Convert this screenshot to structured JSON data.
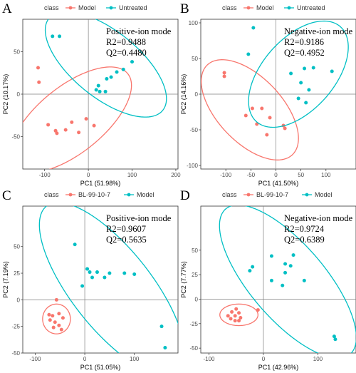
{
  "colors": {
    "model": "#F8766D",
    "untreated": "#00BFC4",
    "bl": "#F8766D"
  },
  "chart_data": [
    {
      "type": "scatter",
      "panel_letter": "A",
      "legend_title": "class",
      "xlabel": "PC1 (51.98%)",
      "ylabel": "PC2 (10.17%)",
      "xlim": [
        -150,
        205
      ],
      "ylim": [
        -88,
        88
      ],
      "xticks": [
        -100,
        0,
        100,
        200
      ],
      "yticks": [
        -50,
        0,
        50
      ],
      "annotations": [
        "Positive-ion mode",
        "R2=0.9488",
        "Q2=0.4480"
      ],
      "series": [
        {
          "name": "Model",
          "color": "#F8766D",
          "points": [
            [
              -115,
              31
            ],
            [
              -113,
              14
            ],
            [
              -92,
              -36
            ],
            [
              -75,
              -43
            ],
            [
              -72,
              -46
            ],
            [
              -52,
              -42
            ],
            [
              -38,
              -33
            ],
            [
              -22,
              -45
            ],
            [
              -5,
              -29
            ],
            [
              13,
              -37
            ]
          ],
          "ellipse": {
            "cx": -40,
            "cy": -30,
            "rx": 145,
            "ry": 45,
            "angle": 18
          }
        },
        {
          "name": "Untreated",
          "color": "#00BFC4",
          "points": [
            [
              -82,
              68
            ],
            [
              -66,
              68
            ],
            [
              18,
              5
            ],
            [
              23,
              10
            ],
            [
              26,
              3
            ],
            [
              39,
              3
            ],
            [
              42,
              18
            ],
            [
              52,
              20
            ],
            [
              65,
              26
            ],
            [
              80,
              29
            ],
            [
              100,
              38
            ]
          ],
          "ellipse": {
            "cx": 40,
            "cy": 35,
            "rx": 145,
            "ry": 45,
            "angle": -18
          }
        }
      ]
    },
    {
      "type": "scatter",
      "panel_letter": "B",
      "legend_title": "class",
      "xlabel": "PC1 (41.50%)",
      "ylabel": "PC2 (14.16%)",
      "xlim": [
        -150,
        160
      ],
      "ylim": [
        -105,
        105
      ],
      "xticks": [
        -100,
        -50,
        0,
        50,
        100
      ],
      "yticks": [
        -100,
        -50,
        0,
        50,
        100
      ],
      "annotations": [
        "Negative-ion mode",
        "R2=0.9186",
        "Q2=0.4952"
      ],
      "series": [
        {
          "name": "Model",
          "color": "#F8766D",
          "points": [
            [
              -103,
              30
            ],
            [
              -103,
              25
            ],
            [
              -60,
              -30
            ],
            [
              -47,
              -20
            ],
            [
              -38,
              -42
            ],
            [
              -28,
              -20
            ],
            [
              -18,
              -57
            ],
            [
              -12,
              -33
            ],
            [
              15,
              -44
            ],
            [
              18,
              -48
            ]
          ],
          "ellipse": {
            "cx": -52,
            "cy": -22,
            "rx": 108,
            "ry": 52,
            "angle": -30
          }
        },
        {
          "name": "Untreated",
          "color": "#00BFC4",
          "points": [
            [
              -55,
              56
            ],
            [
              -45,
              93
            ],
            [
              30,
              29
            ],
            [
              45,
              -6
            ],
            [
              50,
              16
            ],
            [
              57,
              36
            ],
            [
              60,
              -12
            ],
            [
              66,
              6
            ],
            [
              75,
              37
            ],
            [
              112,
              32
            ]
          ],
          "ellipse": {
            "cx": 45,
            "cy": 28,
            "rx": 110,
            "ry": 58,
            "angle": 30
          }
        }
      ]
    },
    {
      "type": "scatter",
      "panel_letter": "C",
      "legend_title": "class",
      "xlabel": "PC1 (51.05%)",
      "ylabel": "PC2 (7.19%)",
      "xlim": [
        -125,
        188
      ],
      "ylim": [
        -50,
        88
      ],
      "xticks": [
        -100,
        0,
        100
      ],
      "yticks": [
        -50,
        -25,
        0,
        25,
        50
      ],
      "annotations": [
        "Positive-ion mode",
        "R2=0.9607",
        "Q2=0.5635"
      ],
      "series": [
        {
          "name": "BL-99-10-7",
          "color": "#F8766D",
          "points": [
            [
              -57,
              0
            ],
            [
              -72,
              -14
            ],
            [
              -65,
              -15
            ],
            [
              -52,
              -13
            ],
            [
              -44,
              -17
            ],
            [
              -70,
              -19
            ],
            [
              -60,
              -21
            ],
            [
              -52,
              -24
            ],
            [
              -63,
              -26
            ],
            [
              -47,
              -28
            ]
          ],
          "ellipse": {
            "cx": -57,
            "cy": -18,
            "rx": 28,
            "ry": 14,
            "angle": 0
          }
        },
        {
          "name": "Model",
          "color": "#00BFC4",
          "points": [
            [
              -20,
              52
            ],
            [
              -5,
              13
            ],
            [
              5,
              29
            ],
            [
              10,
              26
            ],
            [
              15,
              21
            ],
            [
              25,
              26
            ],
            [
              40,
              21
            ],
            [
              50,
              25
            ],
            [
              80,
              25
            ],
            [
              100,
              24
            ],
            [
              155,
              -25
            ],
            [
              162,
              -45
            ]
          ],
          "ellipse": {
            "cx": 55,
            "cy": 10,
            "rx": 160,
            "ry": 50,
            "angle": -25
          }
        }
      ]
    },
    {
      "type": "scatter",
      "panel_letter": "D",
      "legend_title": "class",
      "xlabel": "PC1 (42.96%)",
      "ylabel": "PC2 (7.77%)",
      "xlim": [
        -115,
        170
      ],
      "ylim": [
        -55,
        95
      ],
      "xticks": [
        -100,
        0,
        100
      ],
      "yticks": [
        -50,
        -25,
        0,
        25,
        50
      ],
      "annotations": [
        "Negative-ion mode",
        "R2=0.9724",
        "Q2=0.6389"
      ],
      "series": [
        {
          "name": "BL-99-10-7",
          "color": "#F8766D",
          "points": [
            [
              -50,
              -10
            ],
            [
              -65,
              -17
            ],
            [
              -58,
              -13
            ],
            [
              -52,
              -17
            ],
            [
              -45,
              -14
            ],
            [
              -42,
              -19
            ],
            [
              -60,
              -20
            ],
            [
              -52,
              -22
            ],
            [
              -45,
              -22
            ],
            [
              -10,
              -11
            ]
          ],
          "ellipse": {
            "cx": -45,
            "cy": -16,
            "rx": 35,
            "ry": 11,
            "angle": 0
          }
        },
        {
          "name": "Model",
          "color": "#00BFC4",
          "points": [
            [
              -25,
              29
            ],
            [
              -20,
              33
            ],
            [
              15,
              19
            ],
            [
              15,
              44
            ],
            [
              35,
              14
            ],
            [
              40,
              27
            ],
            [
              40,
              36
            ],
            [
              50,
              34
            ],
            [
              55,
              45
            ],
            [
              75,
              19
            ],
            [
              130,
              -38
            ],
            [
              132,
              -41
            ]
          ],
          "ellipse": {
            "cx": 45,
            "cy": 18,
            "rx": 140,
            "ry": 48,
            "angle": -28
          }
        }
      ]
    }
  ]
}
